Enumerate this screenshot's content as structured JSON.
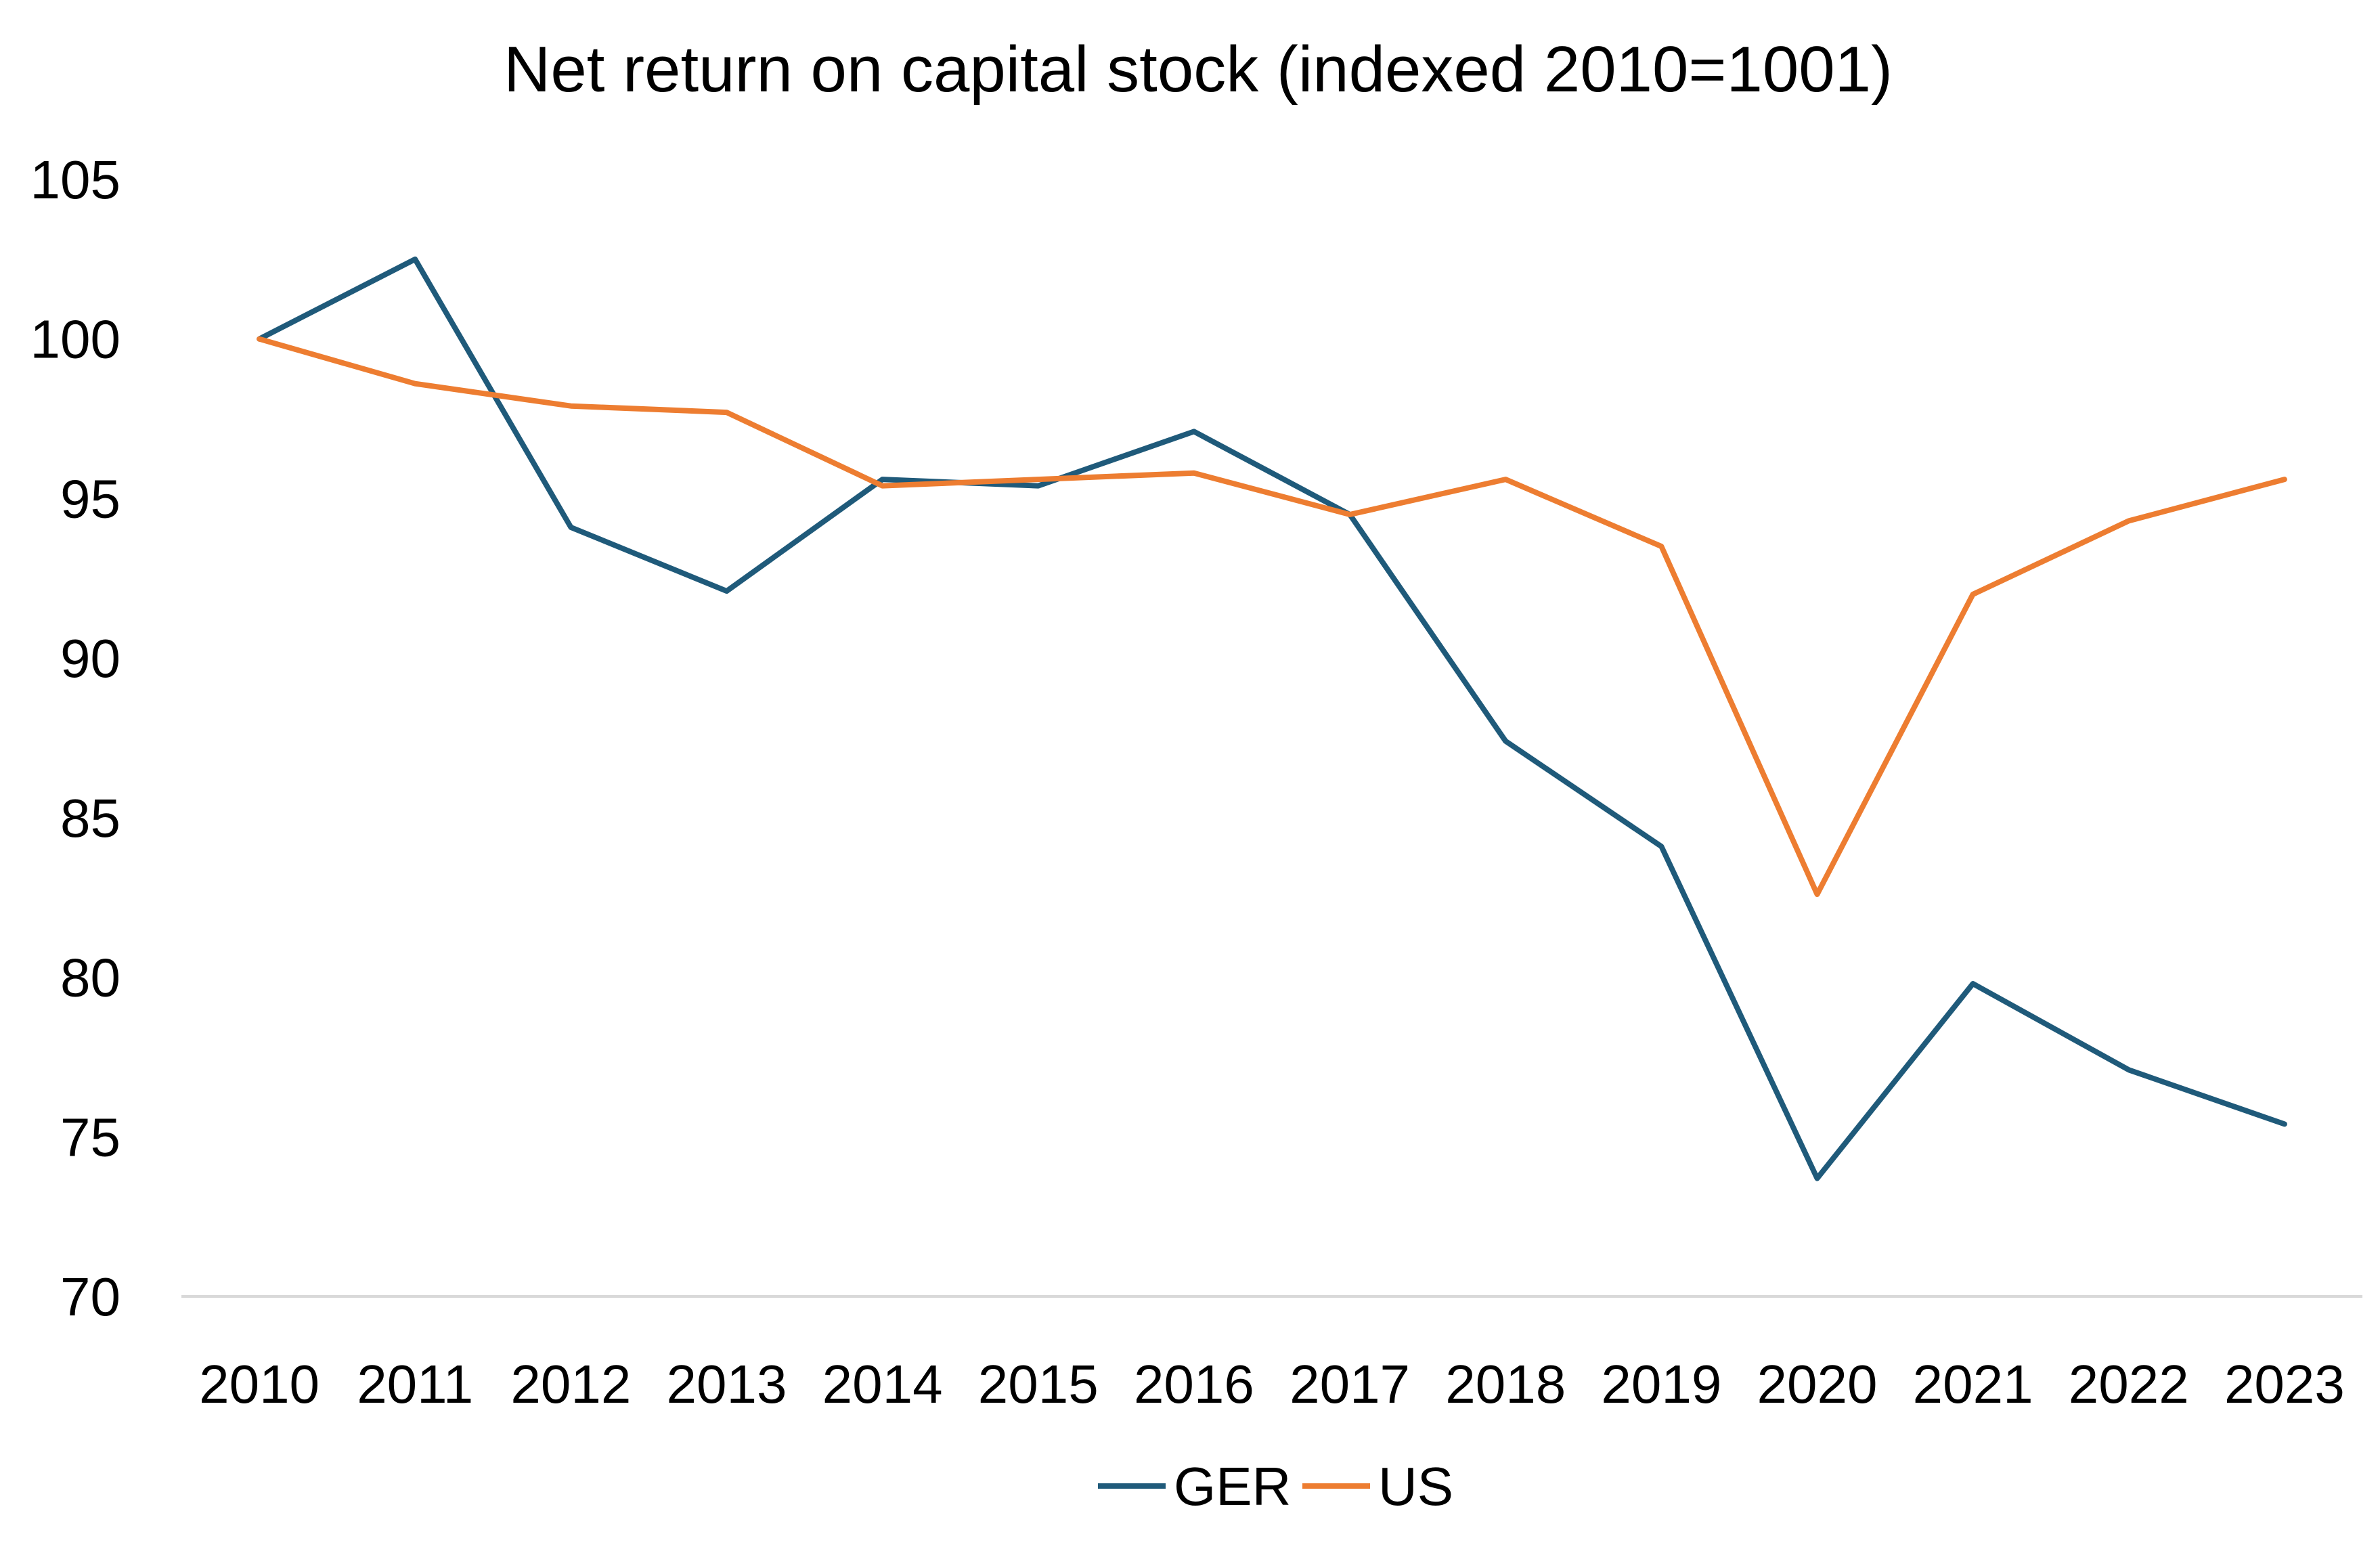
{
  "chart_data": {
    "type": "line",
    "title": "Net return on capital stock (indexed 2010=1001)",
    "xlabel": "",
    "ylabel": "",
    "categories": [
      "2010",
      "2011",
      "2012",
      "2013",
      "2014",
      "2015",
      "2016",
      "2017",
      "2018",
      "2019",
      "2020",
      "2021",
      "2022",
      "2023"
    ],
    "series": [
      {
        "name": "GER",
        "color": "#1F5A7A",
        "values": [
          100.0,
          102.5,
          94.1,
          92.1,
          95.6,
          95.4,
          97.1,
          94.5,
          87.4,
          84.1,
          73.7,
          79.8,
          77.1,
          75.4
        ]
      },
      {
        "name": "US",
        "color": "#ED7D31",
        "values": [
          100.0,
          98.6,
          97.9,
          97.7,
          95.4,
          95.6,
          95.8,
          94.5,
          95.6,
          93.5,
          82.6,
          92.0,
          94.3,
          95.6
        ]
      }
    ],
    "ylim": [
      70,
      105
    ],
    "yticks": [
      70,
      75,
      80,
      85,
      90,
      95,
      100,
      105
    ],
    "grid": false,
    "axis_line_color": "#D9D9D9",
    "legend_position": "bottom"
  }
}
